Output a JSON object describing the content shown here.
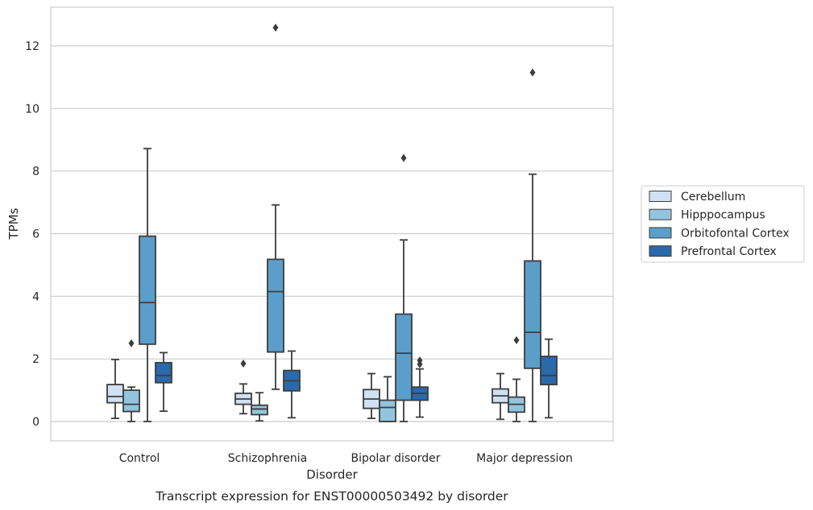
{
  "chart_data": {
    "type": "box",
    "caption": "Transcript expression for ENST00000503492 by disorder",
    "xlabel": "Disorder",
    "ylabel": "TPMs",
    "ylim": [
      -0.6,
      13.2
    ],
    "yticks": [
      0,
      2,
      4,
      6,
      8,
      10,
      12
    ],
    "grid": "horizontal",
    "legend_position": "right-center",
    "categories": [
      "Control",
      "Schizophrenia",
      "Bipolar disorder",
      "Major depression"
    ],
    "series": [
      {
        "name": "Cerebellum",
        "color": "#cfe1f2",
        "boxes": [
          {
            "min": 0.1,
            "q1": 0.6,
            "median": 0.8,
            "q3": 1.18,
            "max": 1.98,
            "outliers": []
          },
          {
            "min": 0.25,
            "q1": 0.55,
            "median": 0.72,
            "q3": 0.9,
            "max": 1.2,
            "outliers": [
              1.85
            ]
          },
          {
            "min": 0.1,
            "q1": 0.42,
            "median": 0.72,
            "q3": 1.02,
            "max": 1.53,
            "outliers": []
          },
          {
            "min": 0.07,
            "q1": 0.6,
            "median": 0.82,
            "q3": 1.04,
            "max": 1.53,
            "outliers": []
          }
        ]
      },
      {
        "name": "Hipppocampus",
        "color": "#93c4de",
        "boxes": [
          {
            "min": 0.0,
            "q1": 0.32,
            "median": 0.55,
            "q3": 1.0,
            "max": 1.1,
            "outliers": [
              2.5
            ]
          },
          {
            "min": 0.02,
            "q1": 0.22,
            "median": 0.4,
            "q3": 0.52,
            "max": 0.92,
            "outliers": []
          },
          {
            "min": 0.0,
            "q1": 0.0,
            "median": 0.45,
            "q3": 0.68,
            "max": 1.43,
            "outliers": []
          },
          {
            "min": 0.0,
            "q1": 0.3,
            "median": 0.55,
            "q3": 0.78,
            "max": 1.35,
            "outliers": [
              2.6
            ]
          }
        ]
      },
      {
        "name": "Orbitofontal Cortex",
        "color": "#5b9ec9",
        "boxes": [
          {
            "min": 0.0,
            "q1": 2.47,
            "median": 3.8,
            "q3": 5.92,
            "max": 8.72,
            "outliers": []
          },
          {
            "min": 1.03,
            "q1": 2.22,
            "median": 4.15,
            "q3": 5.18,
            "max": 6.92,
            "outliers": [
              12.58
            ]
          },
          {
            "min": 0.0,
            "q1": 0.68,
            "median": 2.18,
            "q3": 3.43,
            "max": 5.8,
            "outliers": [
              8.42
            ]
          },
          {
            "min": 0.0,
            "q1": 1.7,
            "median": 2.85,
            "q3": 5.13,
            "max": 7.9,
            "outliers": [
              11.15
            ]
          }
        ]
      },
      {
        "name": "Prefrontal Cortex",
        "color": "#2a69aa",
        "boxes": [
          {
            "min": 0.33,
            "q1": 1.24,
            "median": 1.47,
            "q3": 1.88,
            "max": 2.2,
            "outliers": []
          },
          {
            "min": 0.12,
            "q1": 0.98,
            "median": 1.3,
            "q3": 1.63,
            "max": 2.25,
            "outliers": []
          },
          {
            "min": 0.14,
            "q1": 0.68,
            "median": 0.9,
            "q3": 1.1,
            "max": 1.68,
            "outliers": [
              1.83,
              1.95
            ]
          },
          {
            "min": 0.12,
            "q1": 1.18,
            "median": 1.47,
            "q3": 2.08,
            "max": 2.63,
            "outliers": []
          }
        ]
      }
    ]
  }
}
